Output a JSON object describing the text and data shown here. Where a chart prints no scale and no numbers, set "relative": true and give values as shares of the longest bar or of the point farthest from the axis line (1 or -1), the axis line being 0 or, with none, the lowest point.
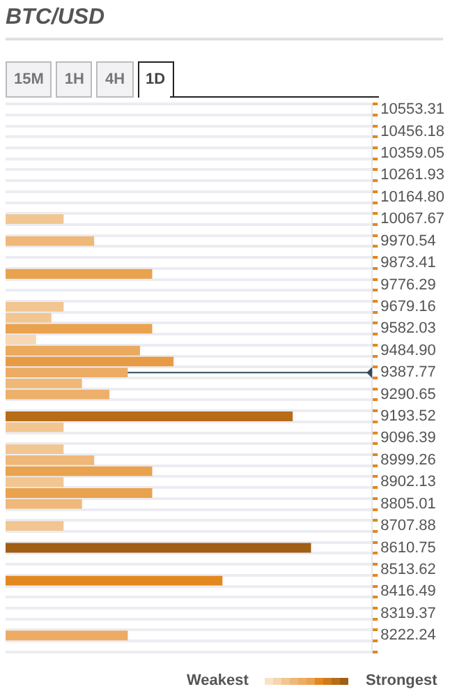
{
  "chart_data": {
    "type": "bar",
    "orientation": "horizontal",
    "relative": true,
    "title": "BTC/USD",
    "annotations": [
      "15M",
      "1H",
      "4H",
      "1D",
      "Weakest",
      "Strongest"
    ],
    "categories": [
      "10553.31",
      null,
      "10456.18",
      null,
      "10359.05",
      null,
      "10261.93",
      null,
      "10164.80",
      null,
      "10067.67",
      null,
      "9970.54",
      null,
      "9873.41",
      null,
      "9776.29",
      null,
      "9679.16",
      null,
      "9582.03",
      null,
      "9484.90",
      null,
      "9387.77",
      null,
      "9290.65",
      null,
      "9193.52",
      null,
      "9096.39",
      null,
      "8999.26",
      null,
      "8902.13",
      null,
      "8805.01",
      null,
      "8707.88",
      null,
      "8610.75",
      null,
      "8513.62",
      null,
      "8416.49",
      null,
      "8319.37",
      null,
      "8222.24",
      null
    ],
    "values": [
      null,
      null,
      null,
      null,
      null,
      null,
      null,
      null,
      null,
      null,
      0.19,
      null,
      0.29,
      null,
      null,
      0.48,
      null,
      null,
      0.19,
      0.15,
      0.48,
      0.1,
      0.44,
      0.55,
      0.4,
      0.25,
      0.34,
      null,
      0.94,
      0.19,
      null,
      0.19,
      0.29,
      0.48,
      0.19,
      0.48,
      0.25,
      null,
      0.19,
      null,
      1,
      null,
      null,
      0.71,
      null,
      null,
      null,
      null,
      0.4,
      null
    ],
    "colors": [
      null,
      null,
      null,
      null,
      null,
      null,
      null,
      null,
      null,
      null,
      "#f2c690",
      null,
      "#efb878",
      null,
      null,
      "#e9a24e",
      null,
      null,
      "#f2c690",
      "#f2c690",
      "#e9a24e",
      "#f6d8b4",
      "#ebaa5e",
      "#e89b45",
      "#ecac64",
      "#efb878",
      "#edb06a",
      null,
      "#b76c18",
      "#f2c690",
      null,
      "#f2c690",
      "#efb878",
      "#e9a24e",
      "#f2c690",
      "#e9a24e",
      "#efb878",
      null,
      "#f2c690",
      null,
      "#a05f14",
      null,
      null,
      "#e2881e",
      null,
      null,
      null,
      null,
      "#ecac64",
      null
    ],
    "ref_lines": [
      {
        "axis": "y",
        "value": "9387.77",
        "color": "#34495e"
      }
    ],
    "grid": "y",
    "legend": false
  }
}
